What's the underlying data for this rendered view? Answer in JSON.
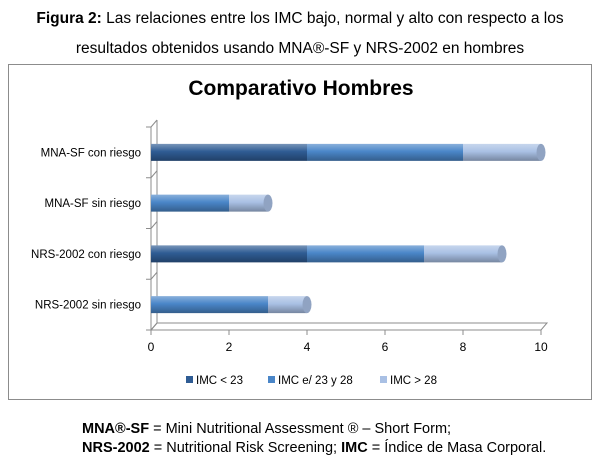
{
  "caption": {
    "label": "Figura 2:",
    "line1": "Las relaciones entre los IMC bajo, normal y alto con respecto a los",
    "line2": "resultados obtenidos usando MNA®-SF y NRS-2002 en hombres"
  },
  "chart_data": {
    "type": "bar",
    "orientation": "horizontal",
    "stacked": true,
    "style": "3d-cylinder",
    "title": "Comparativo Hombres",
    "xlabel": "",
    "ylabel": "",
    "xlim": [
      0,
      10
    ],
    "xticks": [
      0,
      2,
      4,
      6,
      8,
      10
    ],
    "grid": false,
    "legend_position": "bottom",
    "categories": [
      "MNA-SF con riesgo",
      "MNA-SF sin riesgo",
      "NRS-2002 con riesgo",
      "NRS-2002 sin riesgo"
    ],
    "series": [
      {
        "name": "IMC < 23",
        "color": "#2f5c94",
        "values": [
          4,
          0,
          4,
          0
        ]
      },
      {
        "name": "IMC e/ 23 y 28",
        "color": "#4a86c8",
        "values": [
          4,
          2,
          3,
          3
        ]
      },
      {
        "name": "IMC > 28",
        "color": "#a9c0e4",
        "values": [
          2,
          1,
          2,
          1
        ]
      }
    ]
  },
  "footnote": {
    "line1": [
      {
        "text": "MNA®-SF",
        "bold": true
      },
      {
        "text": " = Mini Nutritional Assessment ® – Short Form;",
        "bold": false
      }
    ],
    "line2": [
      {
        "text": "NRS-2002",
        "bold": true
      },
      {
        "text": " = Nutritional Risk Screening; ",
        "bold": false
      },
      {
        "text": "IMC",
        "bold": true
      },
      {
        "text": " = Índice de Masa Corporal.",
        "bold": false
      }
    ]
  }
}
